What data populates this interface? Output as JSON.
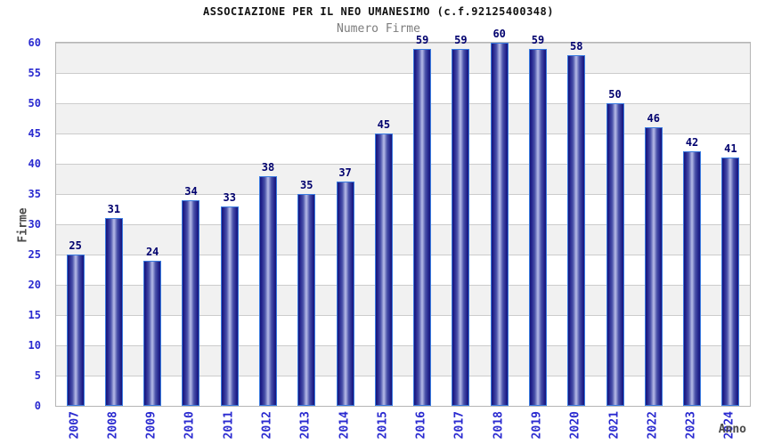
{
  "header": {
    "title": "ASSOCIAZIONE PER IL NEO UMANESIMO (c.f.92125400348)",
    "subtitle": "Numero Firme"
  },
  "axes": {
    "x_title": "Anno",
    "y_title": "Firme"
  },
  "chart_data": {
    "type": "bar",
    "title": "ASSOCIAZIONE PER IL NEO UMANESIMO (c.f.92125400348)",
    "subtitle": "Numero Firme",
    "xlabel": "Anno",
    "ylabel": "Firme",
    "categories": [
      "2007",
      "2008",
      "2009",
      "2010",
      "2011",
      "2012",
      "2013",
      "2014",
      "2015",
      "2016",
      "2017",
      "2018",
      "2019",
      "2020",
      "2021",
      "2022",
      "2023",
      "2024"
    ],
    "values": [
      25,
      31,
      24,
      34,
      33,
      38,
      35,
      37,
      45,
      59,
      59,
      60,
      59,
      58,
      50,
      46,
      42,
      41
    ],
    "ylim": [
      0,
      60
    ],
    "ytick_step": 5,
    "yticks": [
      0,
      5,
      10,
      15,
      20,
      25,
      30,
      35,
      40,
      45,
      50,
      55,
      60
    ],
    "grid": "horizontal alternating bands, gray band between odd tick intervals, thin gridline every 5 units",
    "legend": null,
    "colors": {
      "bar_border": "#3a7be0",
      "bar_edge": "#15157a",
      "bar_center": "#b7bce8",
      "value_label": "#00006e",
      "tick_label": "#2a2ad0",
      "band_gray": "#f1f1f1",
      "grid_line": "#cccccc",
      "plot_border": "#b5b5b5",
      "title": "#111111",
      "subtitle": "#7d7d7d",
      "axis_title": "#4a4a4a",
      "background": "#ffffff"
    }
  }
}
